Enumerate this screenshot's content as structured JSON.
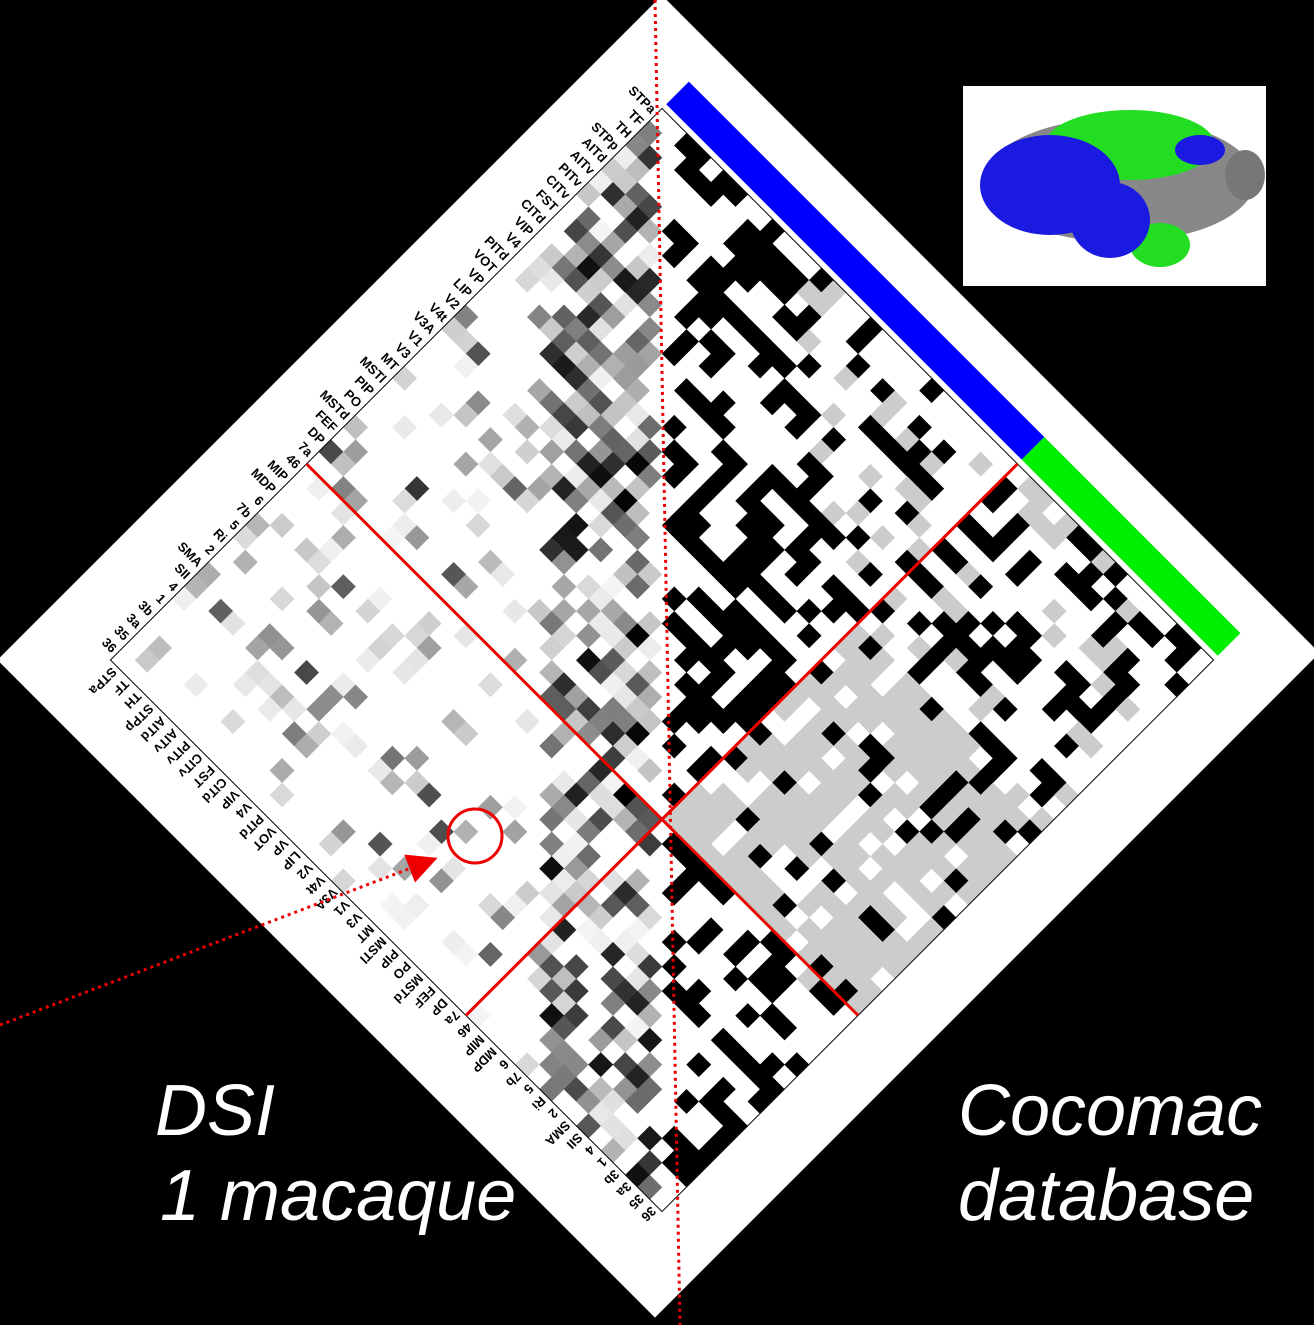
{
  "captions": {
    "dsi": [
      "DSI",
      "1 macaque"
    ],
    "cocomac": [
      "Cocomac",
      "database"
    ]
  },
  "areas": [
    "STPa",
    "TF",
    "TH",
    "STPp",
    "AITd",
    "AITv",
    "PITv",
    "CITv",
    "FST",
    "CITd",
    "VIP",
    "V4",
    "PITd",
    "VOT",
    "VP",
    "LIP",
    "V2",
    "V4t",
    "V3A",
    "V1",
    "V3",
    "MT",
    "MSTl",
    "PIP",
    "PO",
    "MSTd",
    "FEF",
    "DP",
    "7a",
    "46",
    "MIP",
    "MDP",
    "6",
    "7b",
    "5",
    "Ri",
    "2",
    "SMA",
    "SII",
    "4",
    "1",
    "3b",
    "3a",
    "35",
    "36"
  ]
}
